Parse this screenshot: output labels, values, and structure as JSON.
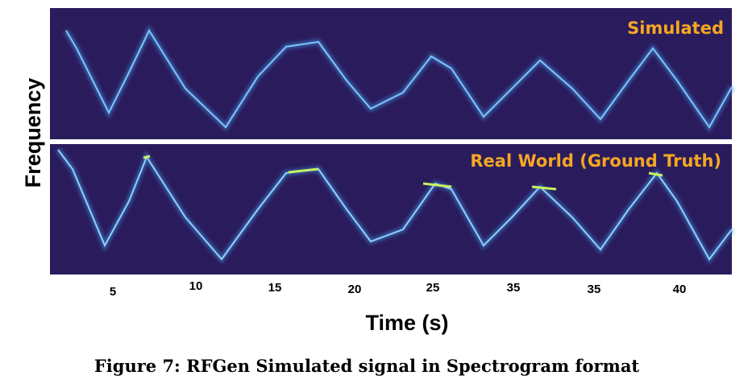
{
  "figure": {
    "panels": [
      {
        "label": "Simulated"
      },
      {
        "label": "Real World (Ground Truth)"
      }
    ],
    "y_axis_label": "Frequency",
    "x_tick_labels": [
      "5",
      "10",
      "15",
      "20",
      "25",
      "35",
      "35",
      "40"
    ],
    "x_axis_label": "Time (s)",
    "caption": "Figure 7: RFGen Simulated signal in Spectrogram format"
  }
}
